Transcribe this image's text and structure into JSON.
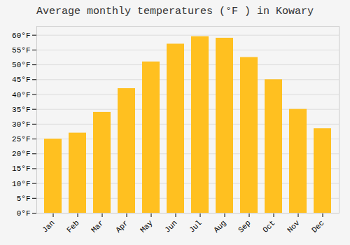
{
  "chart_data": {
    "type": "bar",
    "title": "Average monthly temperatures (°F ) in Kowary",
    "categories": [
      "Jan",
      "Feb",
      "Mar",
      "Apr",
      "May",
      "Jun",
      "Jul",
      "Aug",
      "Sep",
      "Oct",
      "Nov",
      "Dec"
    ],
    "values": [
      25,
      27,
      34,
      42,
      51,
      57,
      59.5,
      59,
      52.5,
      45,
      35,
      28.5
    ],
    "color": "#FFC020",
    "ylim": [
      0,
      63
    ],
    "yticks": [
      {
        "value": 0,
        "label": "0°F"
      },
      {
        "value": 5,
        "label": "5°F"
      },
      {
        "value": 10,
        "label": "10°F"
      },
      {
        "value": 15,
        "label": "15°F"
      },
      {
        "value": 20,
        "label": "20°F"
      },
      {
        "value": 25,
        "label": "25°F"
      },
      {
        "value": 30,
        "label": "30°F"
      },
      {
        "value": 35,
        "label": "35°F"
      },
      {
        "value": 40,
        "label": "40°F"
      },
      {
        "value": 45,
        "label": "45°F"
      },
      {
        "value": 50,
        "label": "50°F"
      },
      {
        "value": 55,
        "label": "55°F"
      },
      {
        "value": 60,
        "label": "60°F"
      }
    ],
    "grid": true
  }
}
